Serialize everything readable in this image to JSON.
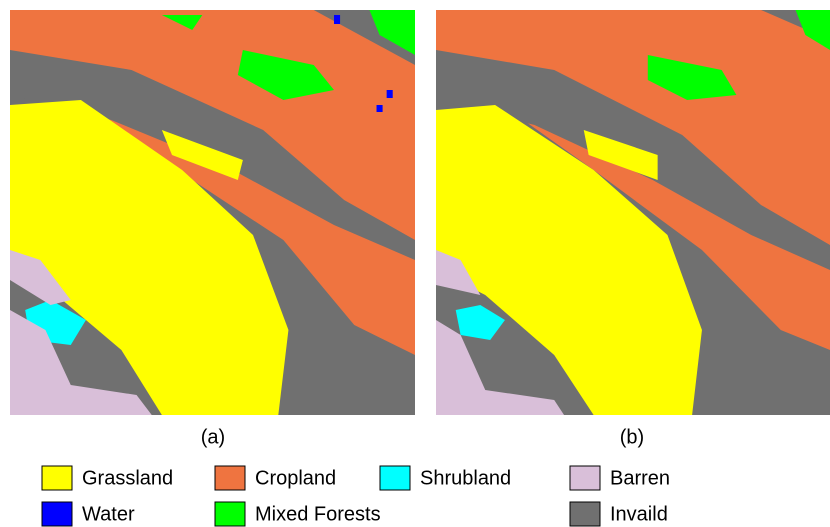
{
  "panels": [
    {
      "label": "(a)"
    },
    {
      "label": "(b)"
    }
  ],
  "legend": [
    {
      "label": "Grassland",
      "color": "#ffff00"
    },
    {
      "label": "Cropland",
      "color": "#ef7440"
    },
    {
      "label": "Shrubland",
      "color": "#00ffff"
    },
    {
      "label": "Barren",
      "color": "#d9bfd9"
    },
    {
      "label": "Water",
      "color": "#0000ff"
    },
    {
      "label": "Mixed Forests",
      "color": "#00ff00"
    },
    {
      "label": "Invaild",
      "color": "#707070"
    }
  ]
}
